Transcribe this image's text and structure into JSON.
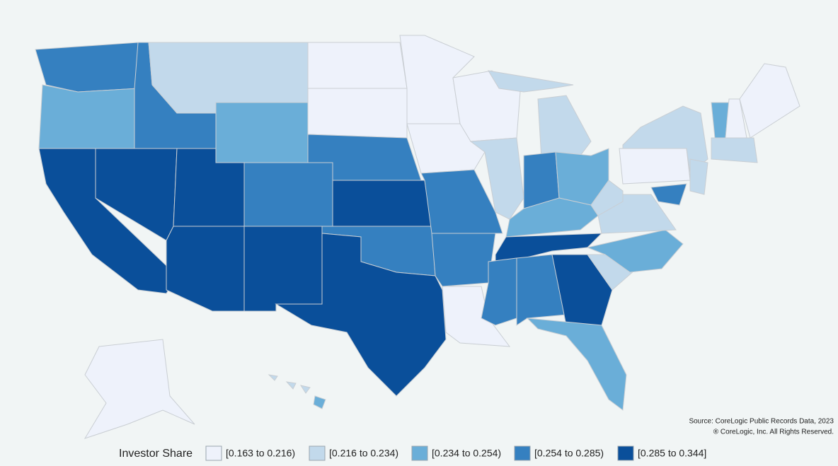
{
  "legend": {
    "title": "Investor Share",
    "items": [
      {
        "label": "[0.163 to 0.216)",
        "color": "#eef2fb"
      },
      {
        "label": "[0.216 to 0.234)",
        "color": "#c2d9eb"
      },
      {
        "label": "[0.234 to 0.254)",
        "color": "#6aaed8"
      },
      {
        "label": "[0.254 to 0.285)",
        "color": "#3580c0"
      },
      {
        "label": "[0.285 to 0.344]",
        "color": "#0a4f9a"
      }
    ]
  },
  "source": [
    "Source: CoreLogic Public Records Data, 2023",
    "® CoreLogic, Inc. All Rights Reserved."
  ]
}
